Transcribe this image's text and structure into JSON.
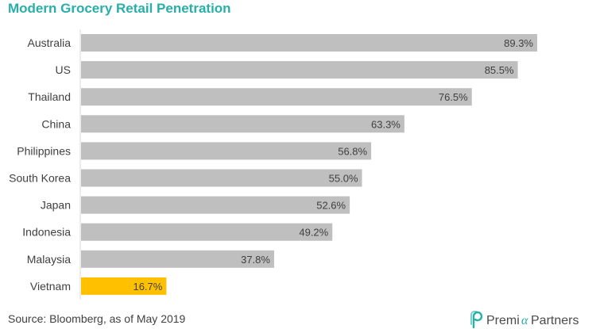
{
  "chart_data": {
    "type": "bar",
    "orientation": "horizontal",
    "title": "Modern Grocery Retail Penetration",
    "categories": [
      "Australia",
      "US",
      "Thailand",
      "China",
      "Philippines",
      "South Korea",
      "Japan",
      "Indonesia",
      "Malaysia",
      "Vietnam"
    ],
    "values": [
      89.3,
      85.5,
      76.5,
      63.3,
      56.8,
      55.0,
      52.6,
      49.2,
      37.8,
      16.7
    ],
    "value_labels": [
      "89.3%",
      "85.5%",
      "76.5%",
      "63.3%",
      "56.8%",
      "55.0%",
      "52.6%",
      "49.2%",
      "37.8%",
      "16.7%"
    ],
    "unit": "%",
    "highlight_category": "Vietnam",
    "xlim": [
      0,
      100
    ],
    "grid": false,
    "legend": "none"
  },
  "colors": {
    "title": "#27AFA9",
    "bar": "#BFBFBF",
    "bar_highlight": "#FFC000",
    "axis_line": "#D9D9D9",
    "label_text": "#404040"
  },
  "footer": {
    "source": "Source: Bloomberg, as of May 2019",
    "brand_logo_text": "PremiaPartners",
    "brand_icon": "premia-partners-logo-icon"
  }
}
